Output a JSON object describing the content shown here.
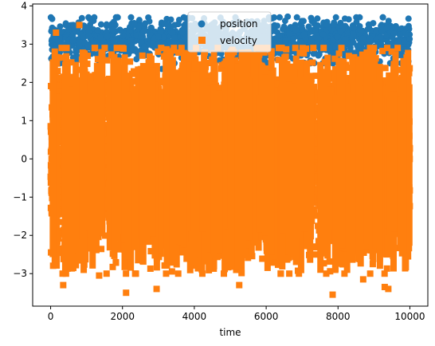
{
  "chart_data": {
    "type": "scatter",
    "title": "",
    "xlabel": "time",
    "ylabel": "",
    "xlim": [
      -500,
      10500
    ],
    "ylim": [
      -3.85,
      4.05
    ],
    "xticks": [
      0,
      2000,
      4000,
      6000,
      8000,
      10000
    ],
    "xtick_labels": [
      "0",
      "2000",
      "4000",
      "6000",
      "8000",
      "10000"
    ],
    "yticks": [
      -3,
      -2,
      -1,
      0,
      1,
      2,
      3,
      4
    ],
    "ytick_labels": [
      "−3",
      "−2",
      "−1",
      "0",
      "1",
      "2",
      "3",
      "4"
    ],
    "grid": false,
    "legend_position": "top-center",
    "legend": [
      "position",
      "velocity"
    ],
    "series": [
      {
        "name": "position",
        "marker": "circle",
        "color": "#1f77b4",
        "x_range": [
          0,
          10000
        ],
        "y_band": [
          2.5,
          3.7
        ],
        "outliers": [
          [
            3100,
            2.35
          ],
          [
            6600,
            3.72
          ],
          [
            9250,
            3.7
          ]
        ]
      },
      {
        "name": "velocity",
        "marker": "square",
        "color": "#ff7f0e",
        "x_range": [
          0,
          10000
        ],
        "y_band": [
          -3.3,
          3.5
        ],
        "outliers": [
          [
            150,
            3.3
          ],
          [
            350,
            -3.3
          ],
          [
            800,
            3.5
          ],
          [
            2100,
            -3.5
          ],
          [
            2950,
            -3.4
          ],
          [
            5250,
            -3.3
          ],
          [
            7850,
            -3.55
          ],
          [
            9300,
            -3.35
          ],
          [
            9400,
            -3.4
          ],
          [
            1350,
            -3.05
          ],
          [
            8700,
            -3.15
          ]
        ]
      }
    ]
  }
}
